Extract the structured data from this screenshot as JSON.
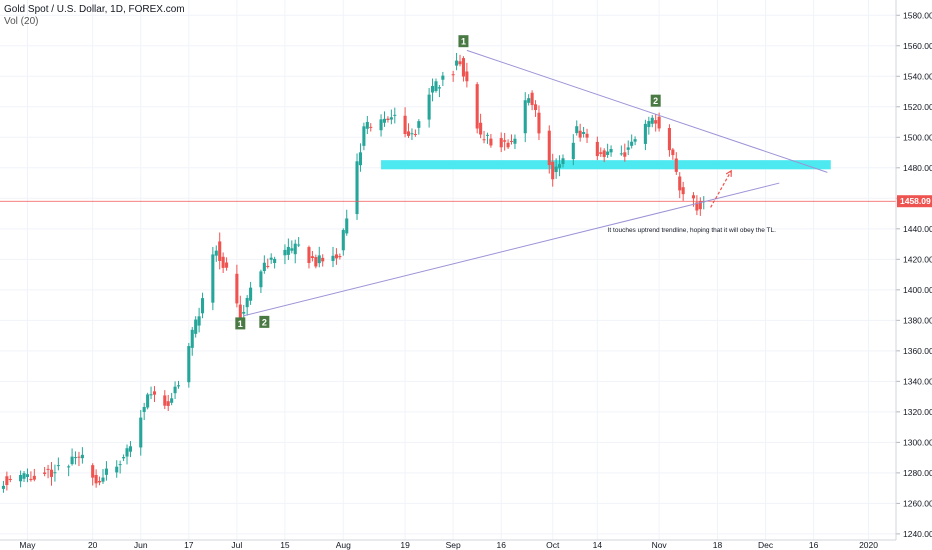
{
  "header": {
    "symbol_line": "Gold Spot / U.S. Dollar, 1D, FOREX.com",
    "volume_line": "Vol (20)"
  },
  "colors": {
    "up": "#26a69a",
    "down": "#ef5350",
    "trendline": "#9c93d6",
    "zone": "#4de9f0",
    "price_line": "#ef5350",
    "price_label_bg": "#ef5350",
    "arrow": "#ef5350",
    "marker_bg": "#4a7a44"
  },
  "chart_data": {
    "type": "candlestick",
    "title": "Gold Spot / U.S. Dollar, 1D, FOREX.com",
    "ylim": [
      1236,
      1590
    ],
    "y_ticks": [
      1240,
      1260,
      1280,
      1300,
      1320,
      1340,
      1360,
      1380,
      1400,
      1420,
      1440,
      1460,
      1480,
      1500,
      1520,
      1540,
      1560,
      1580
    ],
    "x_ticks": [
      {
        "label": "May",
        "date": "2019-05-01"
      },
      {
        "label": "20",
        "date": "2019-05-20"
      },
      {
        "label": "Jun",
        "date": "2019-06-03"
      },
      {
        "label": "17",
        "date": "2019-06-17"
      },
      {
        "label": "Jul",
        "date": "2019-07-01"
      },
      {
        "label": "15",
        "date": "2019-07-15"
      },
      {
        "label": "Aug",
        "date": "2019-08-01"
      },
      {
        "label": "19",
        "date": "2019-08-19"
      },
      {
        "label": "Sep",
        "date": "2019-09-02"
      },
      {
        "label": "16",
        "date": "2019-09-16"
      },
      {
        "label": "Oct",
        "date": "2019-10-01"
      },
      {
        "label": "14",
        "date": "2019-10-14"
      },
      {
        "label": "Nov",
        "date": "2019-11-01"
      },
      {
        "label": "18",
        "date": "2019-11-18"
      },
      {
        "label": "Dec",
        "date": "2019-12-02"
      },
      {
        "label": "16",
        "date": "2019-12-16"
      },
      {
        "label": "2020",
        "date": "2020-01-01"
      }
    ],
    "current_price": 1458.09,
    "current_price_label": "1458.09",
    "anchors": [
      {
        "date": "2019-04-24",
        "close": 1276
      },
      {
        "date": "2019-05-01",
        "close": 1277
      },
      {
        "date": "2019-05-10",
        "close": 1283
      },
      {
        "date": "2019-05-16",
        "close": 1290
      },
      {
        "date": "2019-05-22",
        "close": 1274
      },
      {
        "date": "2019-05-30",
        "close": 1292
      },
      {
        "date": "2019-06-05",
        "close": 1332
      },
      {
        "date": "2019-06-11",
        "close": 1326
      },
      {
        "date": "2019-06-14",
        "close": 1340
      },
      {
        "date": "2019-06-20",
        "close": 1385
      },
      {
        "date": "2019-06-25",
        "close": 1430
      },
      {
        "date": "2019-06-28",
        "close": 1410
      },
      {
        "date": "2019-07-02",
        "close": 1384
      },
      {
        "date": "2019-07-05",
        "close": 1400
      },
      {
        "date": "2019-07-10",
        "close": 1418
      },
      {
        "date": "2019-07-19",
        "close": 1428
      },
      {
        "date": "2019-07-24",
        "close": 1418
      },
      {
        "date": "2019-07-31",
        "close": 1425
      },
      {
        "date": "2019-08-07",
        "close": 1505
      },
      {
        "date": "2019-08-13",
        "close": 1510
      },
      {
        "date": "2019-08-16",
        "close": 1515
      },
      {
        "date": "2019-08-21",
        "close": 1500
      },
      {
        "date": "2019-08-26",
        "close": 1530
      },
      {
        "date": "2019-09-04",
        "close": 1550
      },
      {
        "date": "2019-09-10",
        "close": 1500
      },
      {
        "date": "2019-09-19",
        "close": 1495
      },
      {
        "date": "2019-09-24",
        "close": 1530
      },
      {
        "date": "2019-10-01",
        "close": 1475
      },
      {
        "date": "2019-10-08",
        "close": 1505
      },
      {
        "date": "2019-10-14",
        "close": 1490
      },
      {
        "date": "2019-10-22",
        "close": 1490
      },
      {
        "date": "2019-10-31",
        "close": 1513
      },
      {
        "date": "2019-11-05",
        "close": 1484
      },
      {
        "date": "2019-11-08",
        "close": 1460
      },
      {
        "date": "2019-11-12",
        "close": 1456
      },
      {
        "date": "2019-11-14",
        "close": 1458.09
      }
    ],
    "trendlines": [
      {
        "name": "descending",
        "from": {
          "date": "2019-09-06",
          "price": 1557
        },
        "to": {
          "date": "2019-12-20",
          "price": 1477
        }
      },
      {
        "name": "ascending",
        "from": {
          "date": "2019-07-03",
          "price": 1383
        },
        "to": {
          "date": "2019-12-06",
          "price": 1470
        }
      }
    ],
    "zone": {
      "from_date": "2019-08-12",
      "to_date": "2019-12-21",
      "low": 1479,
      "high": 1485
    },
    "arrow": {
      "from": {
        "date": "2019-11-16",
        "price": 1454
      },
      "to": {
        "date": "2019-11-22",
        "price": 1478
      }
    },
    "markers": [
      {
        "label": "1",
        "date": "2019-09-05",
        "price": 1563
      },
      {
        "label": "2",
        "date": "2019-10-31",
        "price": 1524
      },
      {
        "label": "1",
        "date": "2019-07-02",
        "price": 1378
      },
      {
        "label": "2",
        "date": "2019-07-09",
        "price": 1379
      }
    ],
    "annotations": [
      {
        "text": "It touches uptrend trendline, hoping that it will obey the TL.",
        "date": "2019-10-17",
        "price": 1438
      }
    ]
  }
}
